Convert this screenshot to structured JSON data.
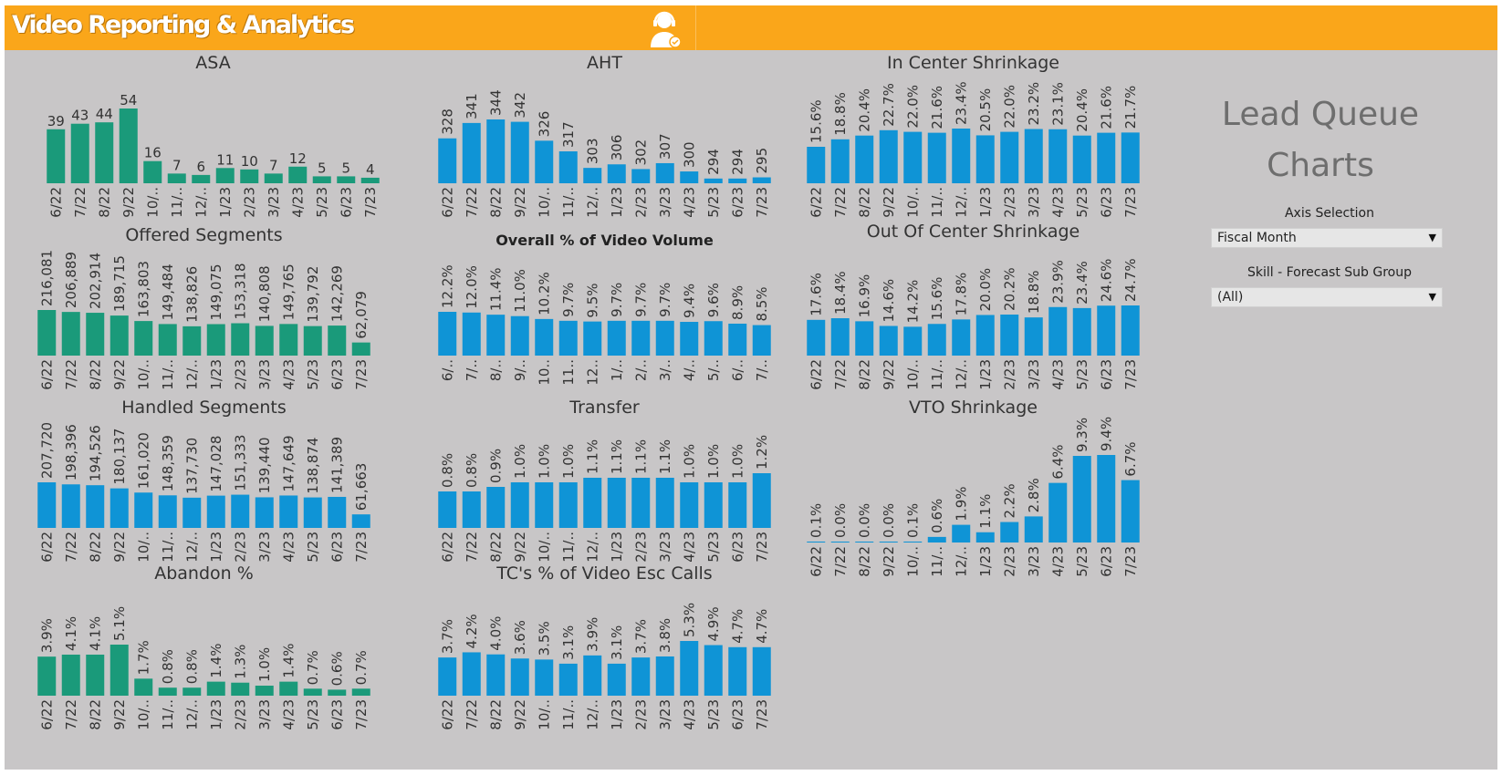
{
  "header": {
    "app_title": "Video Reporting & Analytics"
  },
  "side_panel": {
    "title": "Lead Queue Charts",
    "axis_selection": {
      "label": "Axis Selection",
      "value": "Fiscal Month"
    },
    "skill_filter": {
      "label": "Skill - Forecast Sub Group",
      "value": "(All)"
    }
  },
  "colors": {
    "green": "#1a9a7a",
    "blue": "#0f94d6",
    "header": "#faa61a",
    "background": "#c8c6c7"
  },
  "chart_data": [
    {
      "id": "asa",
      "type": "bar",
      "title": "ASA",
      "color": "green",
      "categories": [
        "6/22",
        "7/22",
        "8/22",
        "9/22",
        "10/..",
        "11/..",
        "12/..",
        "1/23",
        "2/23",
        "3/23",
        "4/23",
        "5/23",
        "6/23",
        "7/23"
      ],
      "values": [
        39,
        43,
        44,
        54,
        16,
        7,
        6,
        11,
        10,
        7,
        12,
        5,
        5,
        4
      ],
      "labels": [
        "39",
        "43",
        "44",
        "54",
        "16",
        "7",
        "6",
        "11",
        "10",
        "7",
        "12",
        "5",
        "5",
        "4"
      ]
    },
    {
      "id": "aht",
      "type": "bar",
      "title": "AHT",
      "color": "blue",
      "categories": [
        "6/22",
        "7/22",
        "8/22",
        "9/22",
        "10/..",
        "11/..",
        "12/..",
        "1/23",
        "2/23",
        "3/23",
        "4/23",
        "5/23",
        "6/23",
        "7/23"
      ],
      "values": [
        328,
        341,
        344,
        342,
        326,
        317,
        303,
        306,
        302,
        307,
        300,
        294,
        294,
        295
      ],
      "labels": [
        "328",
        "341",
        "344",
        "342",
        "326",
        "317",
        "303",
        "306",
        "302",
        "307",
        "300",
        "294",
        "294",
        "295"
      ]
    },
    {
      "id": "in-center",
      "type": "bar",
      "title": "In Center Shrinkage",
      "color": "blue",
      "categories": [
        "6/22",
        "7/22",
        "8/22",
        "9/22",
        "10/..",
        "11/..",
        "12/..",
        "1/23",
        "2/23",
        "3/23",
        "4/23",
        "5/23",
        "6/23",
        "7/23"
      ],
      "values": [
        15.6,
        18.8,
        20.4,
        22.7,
        22.0,
        21.6,
        23.4,
        20.5,
        22.0,
        23.2,
        23.1,
        20.4,
        21.6,
        21.7
      ],
      "labels": [
        "15.6%",
        "18.8%",
        "20.4%",
        "22.7%",
        "22.0%",
        "21.6%",
        "23.4%",
        "20.5%",
        "22.0%",
        "23.2%",
        "23.1%",
        "20.4%",
        "21.6%",
        "21.7%"
      ]
    },
    {
      "id": "offered",
      "type": "bar",
      "title": "Offered Segments",
      "color": "green",
      "categories": [
        "6/22",
        "7/22",
        "8/22",
        "9/22",
        "10/..",
        "11/..",
        "12/..",
        "1/23",
        "2/23",
        "3/23",
        "4/23",
        "5/23",
        "6/23",
        "7/23"
      ],
      "values": [
        216081,
        206889,
        202914,
        189715,
        163803,
        149484,
        138826,
        149075,
        153318,
        140808,
        149765,
        139792,
        142269,
        62079
      ],
      "labels": [
        "216,081",
        "206,889",
        "202,914",
        "189,715",
        "163,803",
        "149,484",
        "138,826",
        "149,075",
        "153,318",
        "140,808",
        "149,765",
        "139,792",
        "142,269",
        "62,079"
      ]
    },
    {
      "id": "overall-video",
      "type": "bar",
      "title": "Overall % of Video Volume",
      "color": "blue",
      "categories": [
        "6/..",
        "7/..",
        "8/..",
        "9/..",
        "10..",
        "11..",
        "12..",
        "1/..",
        "2/..",
        "3/..",
        "4/..",
        "5/..",
        "6/..",
        "7/.."
      ],
      "values": [
        12.2,
        12.0,
        11.4,
        11.0,
        10.2,
        9.7,
        9.5,
        9.7,
        9.7,
        9.7,
        9.4,
        9.6,
        8.9,
        8.5
      ],
      "labels": [
        "12.2%",
        "12.0%",
        "11.4%",
        "11.0%",
        "10.2%",
        "9.7%",
        "9.5%",
        "9.7%",
        "9.7%",
        "9.7%",
        "9.4%",
        "9.6%",
        "8.9%",
        "8.5%"
      ]
    },
    {
      "id": "out-center",
      "type": "bar",
      "title": "Out Of Center Shrinkage",
      "color": "blue",
      "categories": [
        "6/22",
        "7/22",
        "8/22",
        "9/22",
        "10/..",
        "11/..",
        "12/..",
        "1/23",
        "2/23",
        "3/23",
        "4/23",
        "5/23",
        "6/23",
        "7/23"
      ],
      "values": [
        17.6,
        18.4,
        16.9,
        14.6,
        14.2,
        15.6,
        17.8,
        20.0,
        20.2,
        18.8,
        23.9,
        23.4,
        24.6,
        24.7
      ],
      "labels": [
        "17.6%",
        "18.4%",
        "16.9%",
        "14.6%",
        "14.2%",
        "15.6%",
        "17.8%",
        "20.0%",
        "20.2%",
        "18.8%",
        "23.9%",
        "23.4%",
        "24.6%",
        "24.7%"
      ]
    },
    {
      "id": "handled",
      "type": "bar",
      "title": "Handled Segments",
      "color": "blue",
      "categories": [
        "6/22",
        "7/22",
        "8/22",
        "9/22",
        "10/..",
        "11/..",
        "12/..",
        "1/23",
        "2/23",
        "3/23",
        "4/23",
        "5/23",
        "6/23",
        "7/23"
      ],
      "values": [
        207720,
        198396,
        194526,
        180137,
        161020,
        148359,
        137730,
        147028,
        151333,
        139440,
        147649,
        138874,
        141389,
        61663
      ],
      "labels": [
        "207,720",
        "198,396",
        "194,526",
        "180,137",
        "161,020",
        "148,359",
        "137,730",
        "147,028",
        "151,333",
        "139,440",
        "147,649",
        "138,874",
        "141,389",
        "61,663"
      ]
    },
    {
      "id": "transfer",
      "type": "bar",
      "title": "Transfer",
      "color": "blue",
      "categories": [
        "6/22",
        "7/22",
        "8/22",
        "9/22",
        "10/..",
        "11/..",
        "12/..",
        "1/23",
        "2/23",
        "3/23",
        "4/23",
        "5/23",
        "6/23",
        "7/23"
      ],
      "values": [
        0.8,
        0.8,
        0.9,
        1.0,
        1.0,
        1.0,
        1.1,
        1.1,
        1.1,
        1.1,
        1.0,
        1.0,
        1.0,
        1.2
      ],
      "labels": [
        "0.8%",
        "0.8%",
        "0.9%",
        "1.0%",
        "1.0%",
        "1.0%",
        "1.1%",
        "1.1%",
        "1.1%",
        "1.1%",
        "1.0%",
        "1.0%",
        "1.0%",
        "1.2%"
      ]
    },
    {
      "id": "vto",
      "type": "bar",
      "title": "VTO Shrinkage",
      "color": "blue",
      "categories": [
        "6/22",
        "7/22",
        "8/22",
        "9/22",
        "10/..",
        "11/..",
        "12/..",
        "1/23",
        "2/23",
        "3/23",
        "4/23",
        "5/23",
        "6/23",
        "7/23"
      ],
      "values": [
        0.1,
        0.0,
        0.0,
        0.0,
        0.1,
        0.6,
        1.9,
        1.1,
        2.2,
        2.8,
        6.4,
        9.3,
        9.4,
        6.7
      ],
      "labels": [
        "0.1%",
        "0.0%",
        "0.0%",
        "0.0%",
        "0.1%",
        "0.6%",
        "1.9%",
        "1.1%",
        "2.2%",
        "2.8%",
        "6.4%",
        "9.3%",
        "9.4%",
        "6.7%"
      ]
    },
    {
      "id": "abandon",
      "type": "bar",
      "title": "Abandon %",
      "color": "green",
      "categories": [
        "6/22",
        "7/22",
        "8/22",
        "9/22",
        "10/..",
        "11/..",
        "12/..",
        "1/23",
        "2/23",
        "3/23",
        "4/23",
        "5/23",
        "6/23",
        "7/23"
      ],
      "values": [
        3.9,
        4.1,
        4.1,
        5.1,
        1.7,
        0.8,
        0.8,
        1.4,
        1.3,
        1.0,
        1.4,
        0.7,
        0.6,
        0.7
      ],
      "labels": [
        "3.9%",
        "4.1%",
        "4.1%",
        "5.1%",
        "1.7%",
        "0.8%",
        "0.8%",
        "1.4%",
        "1.3%",
        "1.0%",
        "1.4%",
        "0.7%",
        "0.6%",
        "0.7%"
      ]
    },
    {
      "id": "tc-esc",
      "type": "bar",
      "title": "TC's % of Video Esc Calls",
      "color": "blue",
      "categories": [
        "6/22",
        "7/22",
        "8/22",
        "9/22",
        "10/..",
        "11/..",
        "12/..",
        "1/23",
        "2/23",
        "3/23",
        "4/23",
        "5/23",
        "6/23",
        "7/23"
      ],
      "values": [
        3.7,
        4.2,
        4.0,
        3.6,
        3.5,
        3.1,
        3.9,
        3.1,
        3.7,
        3.8,
        5.3,
        4.9,
        4.7,
        4.7
      ],
      "labels": [
        "3.7%",
        "4.2%",
        "4.0%",
        "3.6%",
        "3.5%",
        "3.1%",
        "3.9%",
        "3.1%",
        "3.7%",
        "3.8%",
        "5.3%",
        "4.9%",
        "4.7%",
        "4.7%"
      ]
    }
  ]
}
